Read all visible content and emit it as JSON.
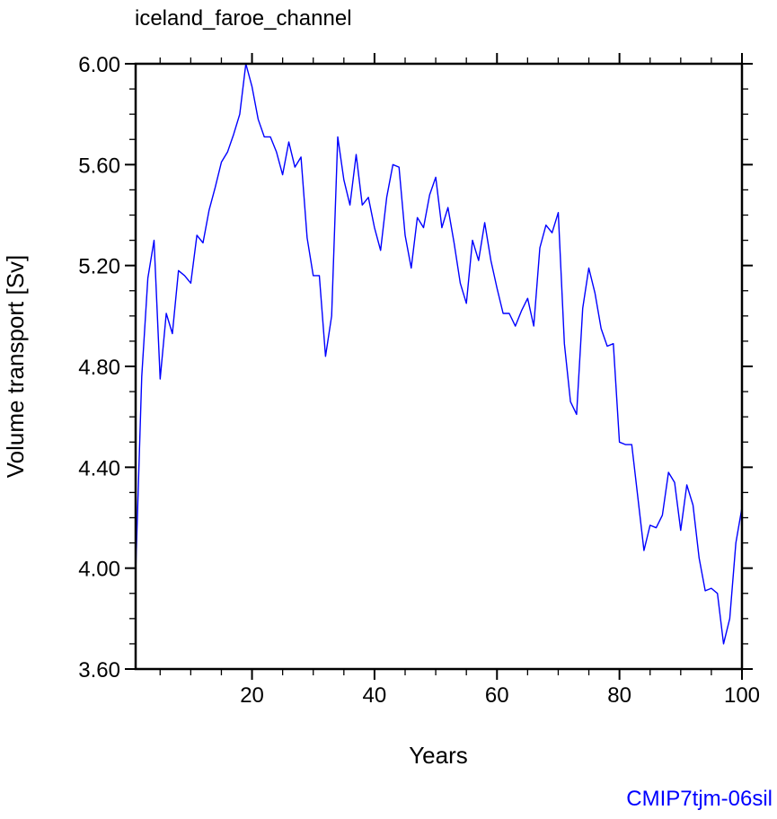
{
  "chart_data": {
    "type": "line",
    "title": "iceland_faroe_channel",
    "xlabel": "Years",
    "ylabel": "Volume transport [Sv]",
    "xlim": [
      1,
      100
    ],
    "ylim": [
      3.6,
      6.0
    ],
    "xticks": [
      20,
      40,
      60,
      80,
      100
    ],
    "xtick_labels": [
      "20",
      "40",
      "60",
      "80",
      "100"
    ],
    "yticks": [
      3.6,
      4.0,
      4.4,
      4.8,
      5.2,
      5.6,
      6.0
    ],
    "ytick_labels": [
      "3.60",
      "4.00",
      "4.40",
      "4.80",
      "5.20",
      "5.60",
      "6.00"
    ],
    "grid": false,
    "series": [
      {
        "name": "iceland_faroe_channel",
        "color": "#0000ff",
        "x_start": 1,
        "x_step": 1,
        "values": [
          3.98,
          4.76,
          5.15,
          5.3,
          4.75,
          5.01,
          4.93,
          5.18,
          5.16,
          5.13,
          5.32,
          5.29,
          5.42,
          5.51,
          5.61,
          5.65,
          5.72,
          5.8,
          6.0,
          5.91,
          5.78,
          5.71,
          5.71,
          5.65,
          5.56,
          5.69,
          5.59,
          5.63,
          5.31,
          5.16,
          5.16,
          4.84,
          5.0,
          5.71,
          5.54,
          5.44,
          5.64,
          5.44,
          5.47,
          5.35,
          5.26,
          5.47,
          5.6,
          5.59,
          5.32,
          5.19,
          5.39,
          5.35,
          5.48,
          5.55,
          5.35,
          5.43,
          5.29,
          5.13,
          5.05,
          5.3,
          5.22,
          5.37,
          5.22,
          5.11,
          5.01,
          5.01,
          4.96,
          5.02,
          5.07,
          4.96,
          5.27,
          5.36,
          5.33,
          5.41,
          4.89,
          4.66,
          4.61,
          5.03,
          5.19,
          5.09,
          4.95,
          4.88,
          4.89,
          4.5,
          4.49,
          4.49,
          4.28,
          4.07,
          4.17,
          4.16,
          4.21,
          4.38,
          4.34,
          4.15,
          4.33,
          4.25,
          4.04,
          3.91,
          3.92,
          3.9,
          3.7,
          3.8,
          4.1,
          4.24
        ]
      }
    ],
    "footer": "CMIP7tjm-06sil",
    "footer_color": "#0000ff"
  }
}
